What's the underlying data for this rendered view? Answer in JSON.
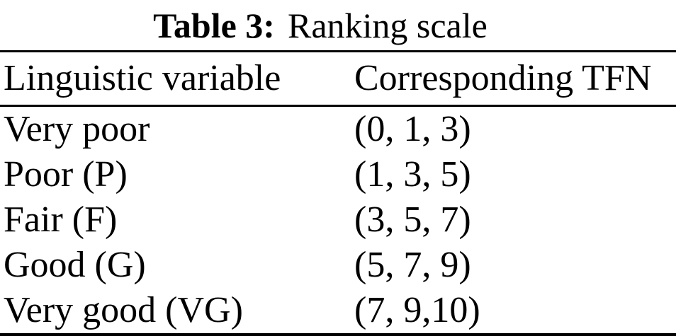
{
  "caption": {
    "label": "Table 3:",
    "text": "Ranking scale"
  },
  "table": {
    "columns": [
      "Linguistic variable",
      "Corresponding TFN"
    ],
    "rows": [
      {
        "variable": "Very poor",
        "tfn": "(0, 1, 3)"
      },
      {
        "variable": "Poor (P)",
        "tfn": "(1, 3, 5)"
      },
      {
        "variable": "Fair (F)",
        "tfn": "(3, 5, 7)"
      },
      {
        "variable": "Good (G)",
        "tfn": "(5, 7, 9)"
      },
      {
        "variable": "Very good (VG)",
        "tfn": "(7, 9,10)"
      }
    ]
  },
  "colors": {
    "text": "#000000",
    "background": "#ffffff",
    "rule": "#000000"
  }
}
